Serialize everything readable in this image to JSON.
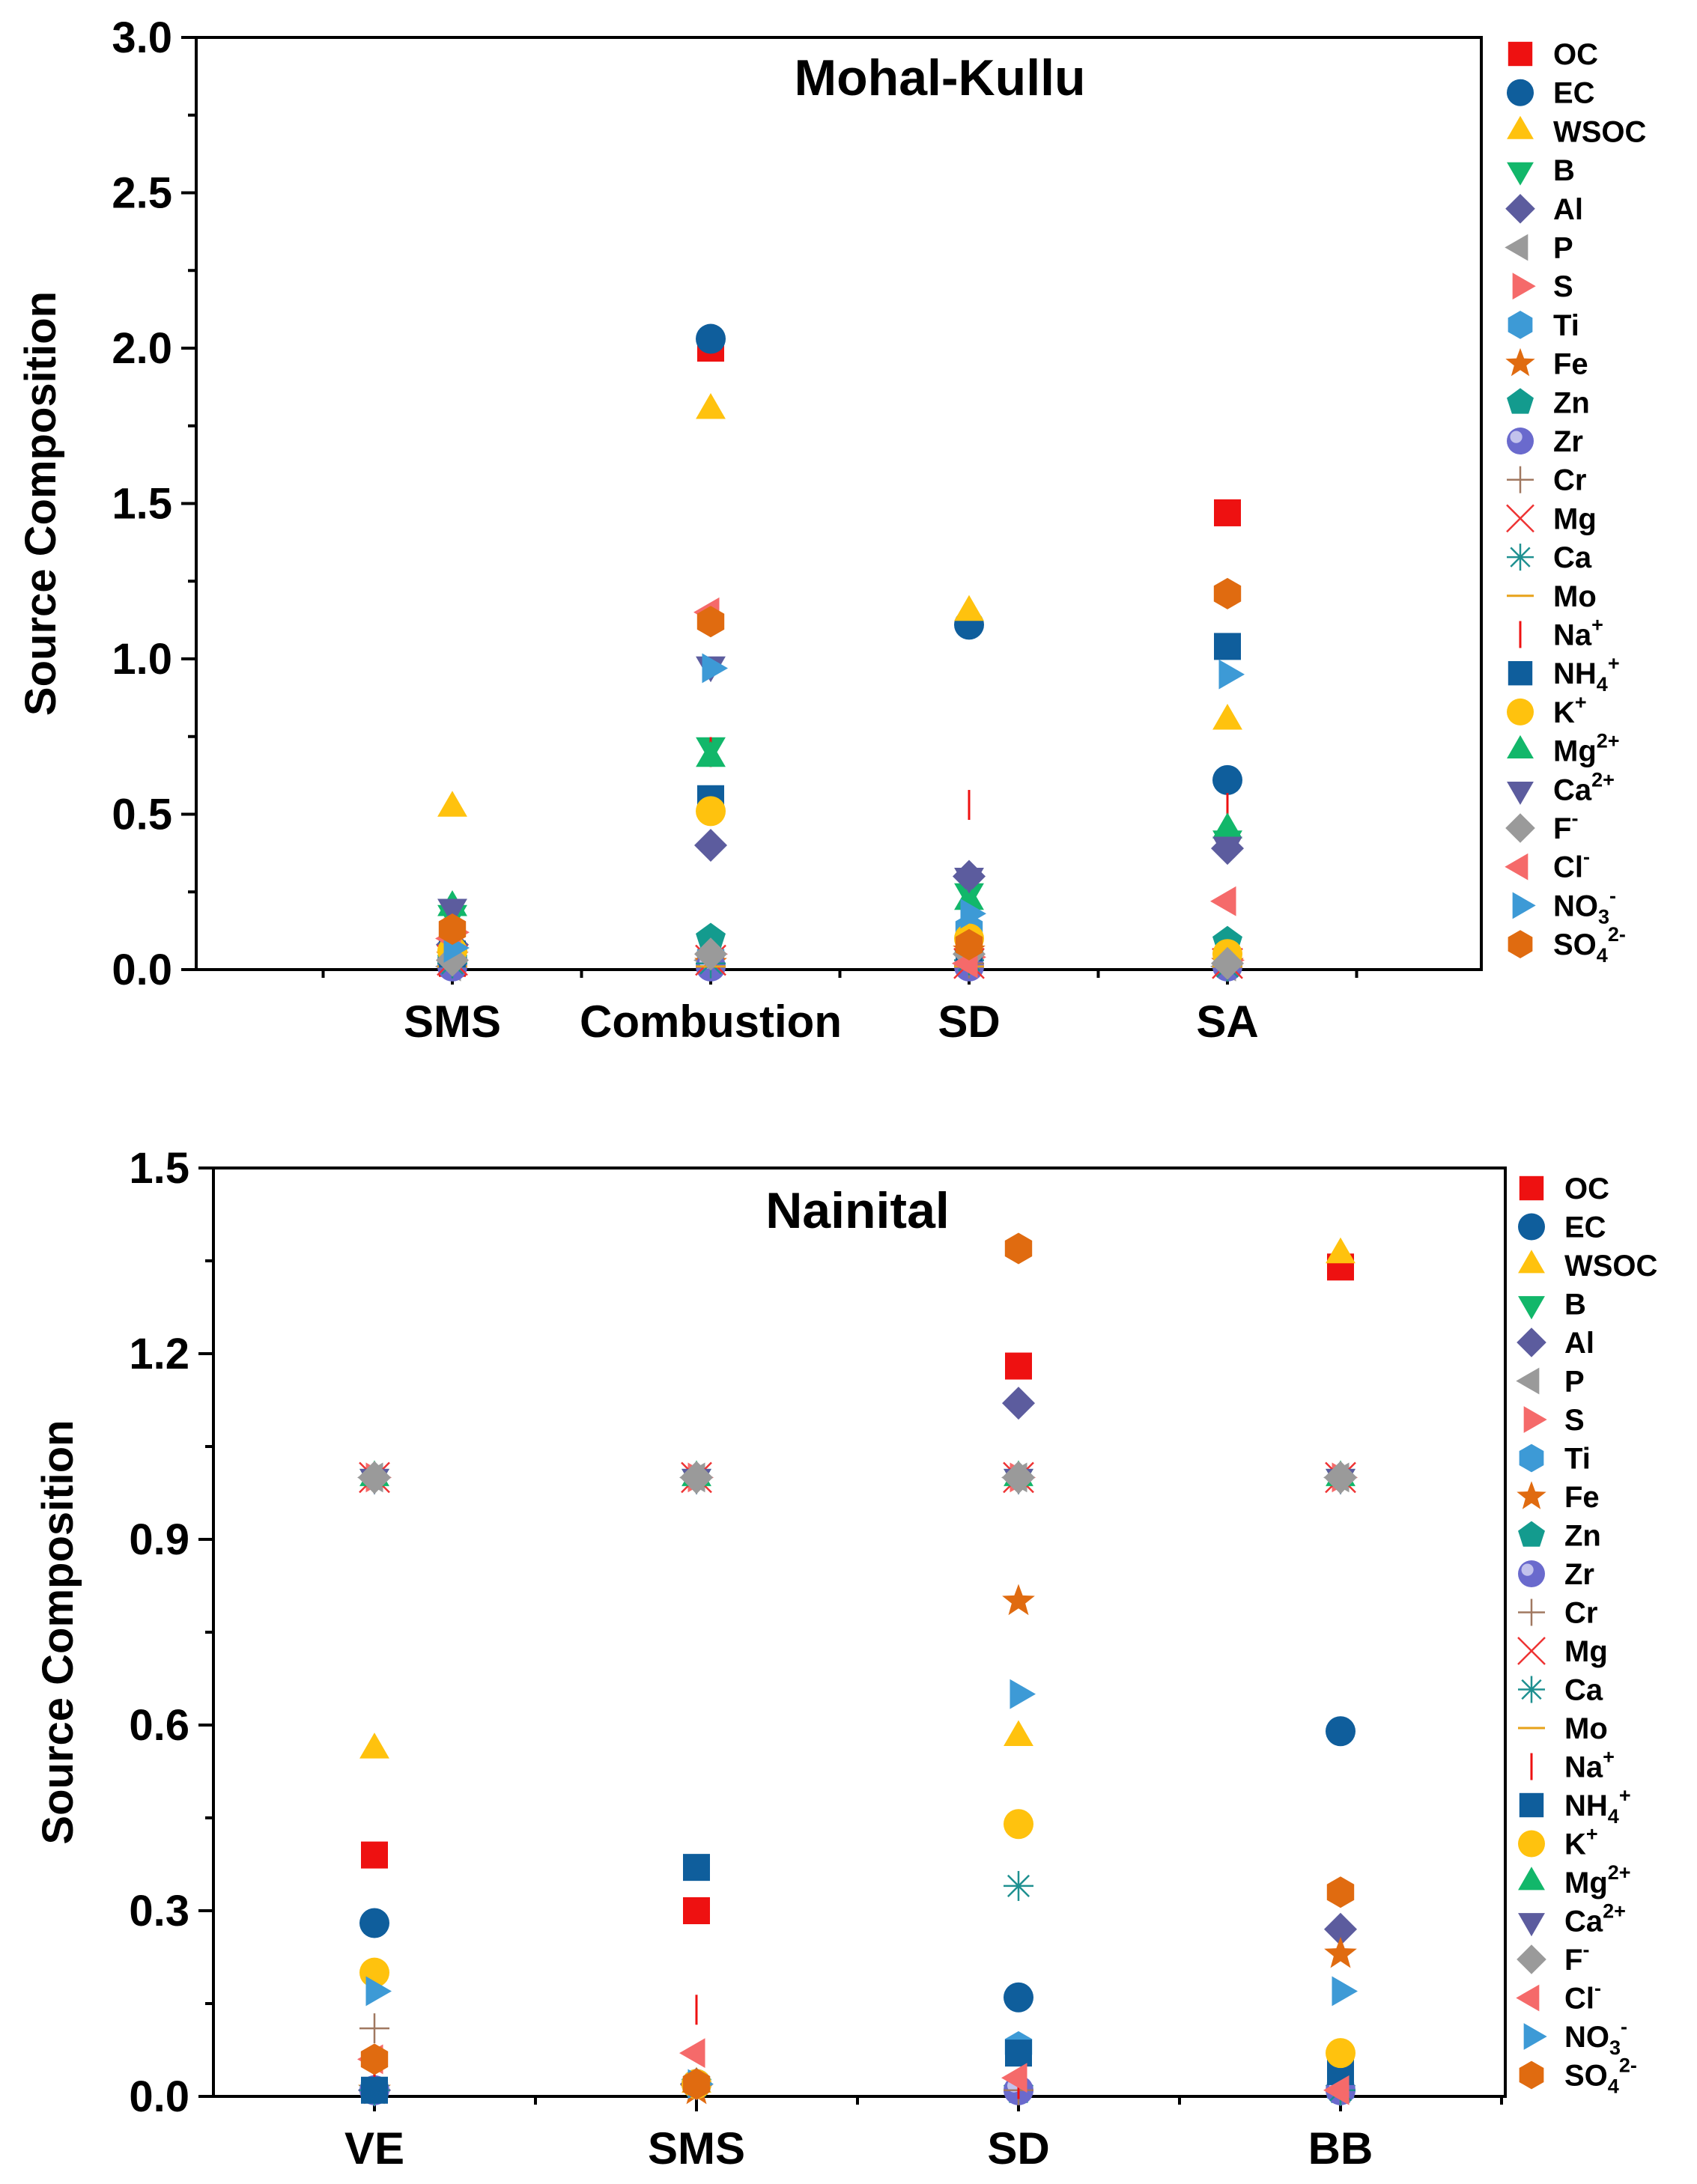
{
  "chart_data": [
    {
      "type": "scatter",
      "title": "Mohal-Kullu",
      "xlabel": "",
      "ylabel": "Source Composition",
      "ylim": [
        0,
        3.0
      ],
      "yticks": [
        "0.0",
        "0.5",
        "1.0",
        "1.5",
        "2.0",
        "2.5",
        "3.0"
      ],
      "categories": [
        "SMS",
        "Combustion",
        "SD",
        "SA"
      ],
      "legend_position": "outside-right",
      "series": [
        {
          "name": "OC",
          "label": "OC",
          "sup": "",
          "sub": "",
          "marker": "square",
          "color": "#ee1111",
          "values": [
            0.02,
            2.0,
            0.1,
            1.47
          ]
        },
        {
          "name": "EC",
          "label": "EC",
          "sup": "",
          "sub": "",
          "marker": "circle",
          "color": "#0f5e9c",
          "values": [
            0.03,
            2.03,
            1.11,
            0.61
          ]
        },
        {
          "name": "WSOC",
          "label": "WSOC",
          "sup": "",
          "sub": "",
          "marker": "triangle-up",
          "color": "#ffc20e",
          "values": [
            0.52,
            1.8,
            1.15,
            0.8
          ]
        },
        {
          "name": "B",
          "label": "B",
          "sup": "",
          "sub": "",
          "marker": "triangle-down",
          "color": "#12b76a",
          "values": [
            0.18,
            0.72,
            0.25,
            0.42
          ]
        },
        {
          "name": "Al",
          "label": "Al",
          "sup": "",
          "sub": "",
          "marker": "diamond",
          "color": "#5c5c9e",
          "values": [
            0.08,
            0.4,
            0.3,
            0.39
          ]
        },
        {
          "name": "P",
          "label": "P",
          "sup": "",
          "sub": "",
          "marker": "triangle-left",
          "color": "#9a9a9a",
          "values": [
            0.01,
            0.03,
            0.02,
            0.01
          ]
        },
        {
          "name": "S",
          "label": "S",
          "sup": "",
          "sub": "",
          "marker": "triangle-right",
          "color": "#f56a6a",
          "values": [
            0.12,
            0.05,
            0.04,
            0.03
          ]
        },
        {
          "name": "Ti",
          "label": "Ti",
          "sup": "",
          "sub": "",
          "marker": "hexagon",
          "color": "#3d9ad6",
          "values": [
            0.05,
            0.04,
            0.13,
            0.02
          ]
        },
        {
          "name": "Fe",
          "label": "Fe",
          "sup": "",
          "sub": "",
          "marker": "star",
          "color": "#e06b10",
          "values": [
            0.04,
            0.02,
            0.06,
            0.02
          ]
        },
        {
          "name": "Zn",
          "label": "Zn",
          "sup": "",
          "sub": "",
          "marker": "pentagon",
          "color": "#139b8e",
          "values": [
            0.03,
            0.1,
            0.05,
            0.09
          ]
        },
        {
          "name": "Zr",
          "label": "Zr",
          "sup": "",
          "sub": "",
          "marker": "sphere",
          "color": "#6a6acd",
          "values": [
            0.01,
            0.01,
            0.01,
            0.01
          ]
        },
        {
          "name": "Cr",
          "label": "Cr",
          "sup": "",
          "sub": "",
          "marker": "plus",
          "color": "#a07860",
          "values": [
            0.02,
            0.02,
            0.02,
            0.01
          ]
        },
        {
          "name": "Mg",
          "label": "Mg",
          "sup": "",
          "sub": "",
          "marker": "x",
          "color": "#ee3333",
          "values": [
            0.03,
            0.03,
            0.02,
            0.02
          ]
        },
        {
          "name": "Ca",
          "label": "Ca",
          "sup": "",
          "sub": "",
          "marker": "asterisk",
          "color": "#1e9090",
          "values": [
            0.02,
            0.02,
            0.03,
            0.01
          ]
        },
        {
          "name": "Mo",
          "label": "Mo",
          "sup": "",
          "sub": "",
          "marker": "hline",
          "color": "#e7a21a",
          "values": [
            0.01,
            0.01,
            0.01,
            0.01
          ]
        },
        {
          "name": "Na+",
          "label": "Na",
          "sup": "+",
          "sub": "",
          "marker": "vline",
          "color": "#ee1111",
          "values": [
            0.03,
            0.7,
            0.53,
            0.52
          ]
        },
        {
          "name": "NH4+",
          "label": "NH",
          "sup": "+",
          "sub": "4",
          "marker": "square",
          "color": "#0f5e9c",
          "values": [
            0.05,
            0.55,
            0.07,
            1.04
          ]
        },
        {
          "name": "K+",
          "label": "K",
          "sup": "+",
          "sub": "",
          "marker": "circle",
          "color": "#ffc20e",
          "values": [
            0.06,
            0.51,
            0.1,
            0.05
          ]
        },
        {
          "name": "Mg2+",
          "label": "Mg",
          "sup": "2+",
          "sub": "",
          "marker": "triangle-up",
          "color": "#12b76a",
          "values": [
            0.2,
            0.68,
            0.22,
            0.45
          ]
        },
        {
          "name": "Ca2+",
          "label": "Ca",
          "sup": "2+",
          "sub": "",
          "marker": "triangle-down",
          "color": "#5c5c9e",
          "values": [
            0.2,
            0.98,
            0.3,
            0.4
          ]
        },
        {
          "name": "F-",
          "label": "F",
          "sup": "-",
          "sub": "",
          "marker": "diamond",
          "color": "#9a9a9a",
          "values": [
            0.03,
            0.05,
            0.05,
            0.02
          ]
        },
        {
          "name": "Cl-",
          "label": "Cl",
          "sup": "-",
          "sub": "",
          "marker": "triangle-left",
          "color": "#f56a6a",
          "values": [
            0.1,
            1.15,
            0.02,
            0.22
          ]
        },
        {
          "name": "NO3-",
          "label": "NO",
          "sup": "-",
          "sub": "3",
          "marker": "triangle-right",
          "color": "#3d9ad6",
          "values": [
            0.07,
            0.97,
            0.18,
            0.95
          ]
        },
        {
          "name": "SO42-",
          "label": "SO",
          "sup": "2-",
          "sub": "4",
          "marker": "hexagon",
          "color": "#e06b10",
          "values": [
            0.13,
            1.12,
            0.08,
            1.21
          ]
        }
      ]
    },
    {
      "type": "scatter",
      "title": "Nainital",
      "xlabel": "",
      "ylabel": "Source Composition",
      "ylim": [
        0,
        1.5
      ],
      "yticks": [
        "0.0",
        "0.3",
        "0.6",
        "0.9",
        "1.2",
        "1.5"
      ],
      "categories": [
        "VE",
        "SMS",
        "SD",
        "BB"
      ],
      "legend_position": "outside-right",
      "series": [
        {
          "name": "OC",
          "label": "OC",
          "sup": "",
          "sub": "",
          "marker": "square",
          "color": "#ee1111",
          "values": [
            0.39,
            0.3,
            1.18,
            1.34
          ]
        },
        {
          "name": "EC",
          "label": "EC",
          "sup": "",
          "sub": "",
          "marker": "circle",
          "color": "#0f5e9c",
          "values": [
            0.28,
            0.02,
            0.16,
            0.59
          ]
        },
        {
          "name": "WSOC",
          "label": "WSOC",
          "sup": "",
          "sub": "",
          "marker": "triangle-up",
          "color": "#ffc20e",
          "values": [
            0.56,
            0.02,
            0.58,
            1.36
          ]
        },
        {
          "name": "B",
          "label": "B",
          "sup": "",
          "sub": "",
          "marker": "triangle-down",
          "color": "#12b76a",
          "values": [
            1.0,
            1.0,
            1.0,
            1.0
          ]
        },
        {
          "name": "Al",
          "label": "Al",
          "sup": "",
          "sub": "",
          "marker": "diamond",
          "color": "#5c5c9e",
          "values": [
            0.01,
            0.02,
            1.12,
            0.27
          ]
        },
        {
          "name": "P",
          "label": "P",
          "sup": "",
          "sub": "",
          "marker": "triangle-left",
          "color": "#9a9a9a",
          "values": [
            1.0,
            1.0,
            1.0,
            1.0
          ]
        },
        {
          "name": "S",
          "label": "S",
          "sup": "",
          "sub": "",
          "marker": "triangle-right",
          "color": "#f56a6a",
          "values": [
            1.0,
            1.0,
            1.0,
            1.0
          ]
        },
        {
          "name": "Ti",
          "label": "Ti",
          "sup": "",
          "sub": "",
          "marker": "hexagon",
          "color": "#3d9ad6",
          "values": [
            0.01,
            0.02,
            0.08,
            0.01
          ]
        },
        {
          "name": "Fe",
          "label": "Fe",
          "sup": "",
          "sub": "",
          "marker": "star",
          "color": "#e06b10",
          "values": [
            0.01,
            0.01,
            0.8,
            0.23
          ]
        },
        {
          "name": "Zn",
          "label": "Zn",
          "sup": "",
          "sub": "",
          "marker": "pentagon",
          "color": "#139b8e",
          "values": [
            0.01,
            0.02,
            0.01,
            0.01
          ]
        },
        {
          "name": "Zr",
          "label": "Zr",
          "sup": "",
          "sub": "",
          "marker": "sphere",
          "color": "#6a6acd",
          "values": [
            0.01,
            0.02,
            0.01,
            0.01
          ]
        },
        {
          "name": "Cr",
          "label": "Cr",
          "sup": "",
          "sub": "",
          "marker": "plus",
          "color": "#a07860",
          "values": [
            0.11,
            0.02,
            0.01,
            0.01
          ]
        },
        {
          "name": "Mg",
          "label": "Mg",
          "sup": "",
          "sub": "",
          "marker": "x",
          "color": "#ee3333",
          "values": [
            1.0,
            1.0,
            1.0,
            1.0
          ]
        },
        {
          "name": "Ca",
          "label": "Ca",
          "sup": "",
          "sub": "",
          "marker": "asterisk",
          "color": "#1e9090",
          "values": [
            0.01,
            0.02,
            0.34,
            0.01
          ]
        },
        {
          "name": "Mo",
          "label": "Mo",
          "sup": "",
          "sub": "",
          "marker": "hline",
          "color": "#e7a21a",
          "values": [
            1.0,
            1.0,
            1.0,
            1.0
          ]
        },
        {
          "name": "Na+",
          "label": "Na",
          "sup": "+",
          "sub": "",
          "marker": "vline",
          "color": "#ee1111",
          "values": [
            0.05,
            0.14,
            0.02,
            0.02
          ]
        },
        {
          "name": "NH4+",
          "label": "NH",
          "sup": "+",
          "sub": "4",
          "marker": "square",
          "color": "#0f5e9c",
          "values": [
            0.01,
            0.37,
            0.07,
            0.04
          ]
        },
        {
          "name": "K+",
          "label": "K",
          "sup": "+",
          "sub": "",
          "marker": "circle",
          "color": "#ffc20e",
          "values": [
            0.2,
            0.02,
            0.44,
            0.07
          ]
        },
        {
          "name": "Mg2+",
          "label": "Mg",
          "sup": "2+",
          "sub": "",
          "marker": "triangle-up",
          "color": "#12b76a",
          "values": [
            1.0,
            1.0,
            1.0,
            1.0
          ]
        },
        {
          "name": "Ca2+",
          "label": "Ca",
          "sup": "2+",
          "sub": "",
          "marker": "triangle-down",
          "color": "#5c5c9e",
          "values": [
            1.0,
            1.0,
            1.0,
            1.0
          ]
        },
        {
          "name": "F-",
          "label": "F",
          "sup": "-",
          "sub": "",
          "marker": "diamond",
          "color": "#9a9a9a",
          "values": [
            1.0,
            1.0,
            1.0,
            1.0
          ]
        },
        {
          "name": "Cl-",
          "label": "Cl",
          "sup": "-",
          "sub": "",
          "marker": "triangle-left",
          "color": "#f56a6a",
          "values": [
            0.06,
            0.07,
            0.03,
            0.01
          ]
        },
        {
          "name": "NO3-",
          "label": "NO",
          "sup": "-",
          "sub": "3",
          "marker": "triangle-right",
          "color": "#3d9ad6",
          "values": [
            0.17,
            0.02,
            0.65,
            0.17
          ]
        },
        {
          "name": "SO42-",
          "label": "SO",
          "sup": "2-",
          "sub": "4",
          "marker": "hexagon",
          "color": "#e06b10",
          "values": [
            0.06,
            0.02,
            1.37,
            0.33
          ]
        }
      ]
    }
  ]
}
